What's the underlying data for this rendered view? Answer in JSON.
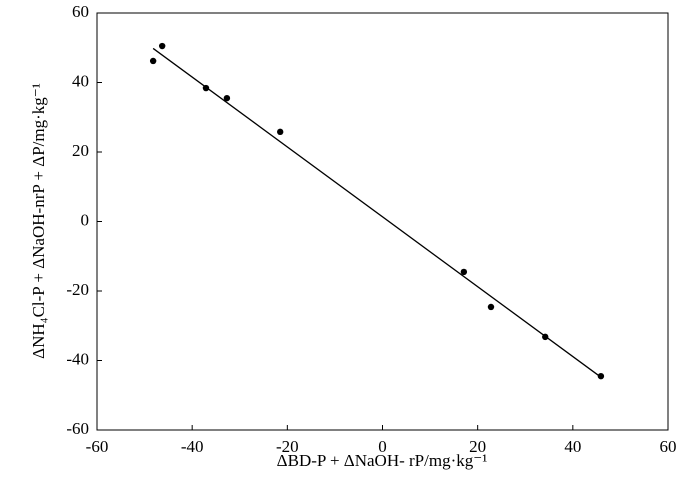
{
  "chart_data": {
    "type": "scatter",
    "x_label": "ΔBD-P + ΔNaOH- rP/mg·kg⁻¹",
    "y_label": "ΔNH₄Cl-P + ΔNaOH-nrP + ΔP/mg·kg⁻¹",
    "xlim": [
      -60,
      60
    ],
    "xticks": [
      -60,
      -40,
      -20,
      0,
      20,
      40,
      60
    ],
    "ylim": [
      -60,
      60
    ],
    "yticks": [
      -60,
      -40,
      -20,
      0,
      20,
      40,
      60
    ],
    "series": [
      {
        "type": "scatter",
        "color": "#000000",
        "x": [
          -48.2,
          -46.3,
          -37.1,
          -32.7,
          -21.5,
          17.1,
          22.8,
          34.2,
          45.9
        ],
        "values": [
          46.2,
          50.5,
          38.4,
          35.5,
          25.8,
          -14.5,
          -24.6,
          -33.2,
          -44.5
        ]
      },
      {
        "type": "line",
        "color": "#000000",
        "x": [
          -48.2,
          46.3
        ],
        "values": [
          49.8,
          -45.2
        ]
      }
    ]
  }
}
